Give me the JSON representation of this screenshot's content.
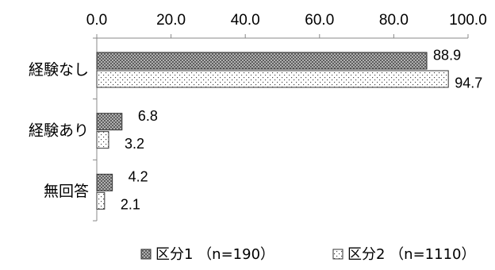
{
  "chart_data": {
    "type": "bar",
    "orientation": "horizontal",
    "categories": [
      "経験なし",
      "経験あり",
      "無回答"
    ],
    "series": [
      {
        "name": "区分1 （n=190）",
        "values": [
          88.9,
          6.8,
          4.2
        ],
        "pattern": "crosshatch"
      },
      {
        "name": "区分2 （n=1110）",
        "values": [
          94.7,
          3.2,
          2.1
        ],
        "pattern": "dots"
      }
    ],
    "x_ticks": [
      "0.0",
      "20.0",
      "40.0",
      "60.0",
      "80.0",
      "100.0"
    ],
    "xlim": [
      0,
      100
    ],
    "x_axis_position": "top",
    "data_labels": [
      [
        "88.9",
        "6.8",
        "4.2"
      ],
      [
        "94.7",
        "3.2",
        "2.1"
      ]
    ],
    "legend_position": "bottom",
    "grid": false
  }
}
